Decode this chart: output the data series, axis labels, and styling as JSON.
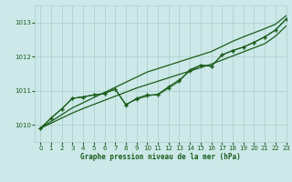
{
  "title": "Graphe pression niveau de la mer (hPa)",
  "bg_color": "#cce8e8",
  "grid_color": "#aacccc",
  "line_color": "#1a5c1a",
  "ylim": [
    1009.5,
    1013.5
  ],
  "xlim": [
    -0.5,
    23
  ],
  "yticks": [
    1010,
    1011,
    1012,
    1013
  ],
  "xticks": [
    0,
    1,
    2,
    3,
    4,
    5,
    6,
    7,
    8,
    9,
    10,
    11,
    12,
    13,
    14,
    15,
    16,
    17,
    18,
    19,
    20,
    21,
    22,
    23
  ],
  "series_straight_top": [
    1009.9,
    1010.1,
    1010.3,
    1010.5,
    1010.65,
    1010.8,
    1010.95,
    1011.1,
    1011.25,
    1011.4,
    1011.55,
    1011.65,
    1011.75,
    1011.85,
    1011.95,
    1012.05,
    1012.15,
    1012.3,
    1012.45,
    1012.58,
    1012.7,
    1012.82,
    1012.95,
    1013.2
  ],
  "series_straight_bot": [
    1009.9,
    1010.05,
    1010.2,
    1010.35,
    1010.48,
    1010.6,
    1010.72,
    1010.84,
    1010.96,
    1011.08,
    1011.18,
    1011.28,
    1011.38,
    1011.48,
    1011.58,
    1011.68,
    1011.78,
    1011.9,
    1012.02,
    1012.14,
    1012.26,
    1012.38,
    1012.6,
    1012.9
  ],
  "series_wiggly1": [
    1009.9,
    1010.2,
    1010.47,
    1010.78,
    1010.82,
    1010.88,
    1010.92,
    1011.05,
    1010.58,
    1010.78,
    1010.88,
    1010.88,
    1011.08,
    1011.28,
    1011.62,
    1011.75,
    1011.72,
    1012.05,
    1012.18,
    1012.28,
    1012.42,
    1012.58,
    1012.78,
    1013.1
  ],
  "series_wiggly2": [
    1009.9,
    1010.2,
    1010.47,
    1010.78,
    1010.82,
    1010.88,
    1010.92,
    1011.05,
    1010.6,
    1010.75,
    1010.85,
    1010.9,
    1011.12,
    1011.32,
    1011.58,
    1011.75,
    1011.72,
    1012.05,
    1012.18,
    1012.28,
    1012.42,
    1012.58,
    1012.78,
    1013.1
  ]
}
